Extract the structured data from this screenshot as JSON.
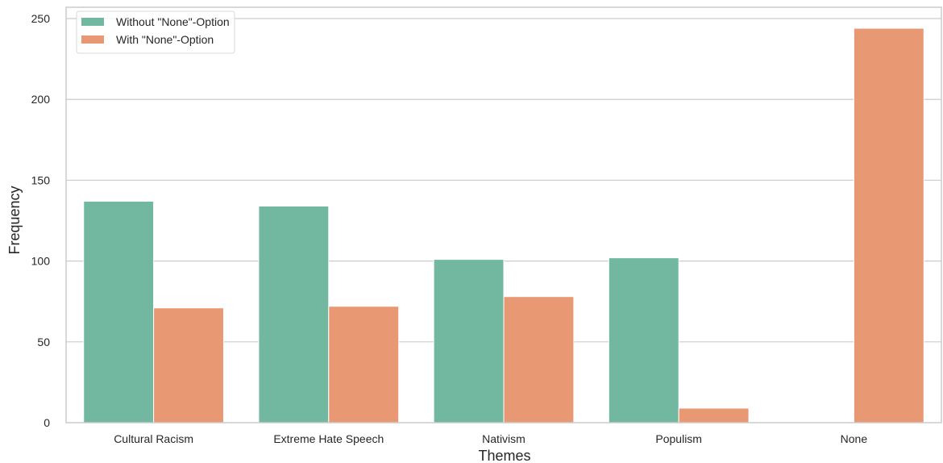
{
  "chart_data": {
    "type": "bar",
    "categories": [
      "Cultural Racism",
      "Extreme Hate Speech",
      "Nativism",
      "Populism",
      "None"
    ],
    "series": [
      {
        "name": "Without \"None\"-Option",
        "values": [
          137,
          134,
          101,
          102,
          0
        ],
        "color": "#72b8a1"
      },
      {
        "name": "With \"None\"-Option",
        "values": [
          71,
          72,
          78,
          9,
          244
        ],
        "color": "#e99874"
      }
    ],
    "title": "",
    "xlabel": "Themes",
    "ylabel": "Frequency",
    "ylim": [
      0,
      257
    ],
    "yticks": [
      0,
      50,
      100,
      150,
      200,
      250
    ],
    "grid": "horizontal",
    "legend_position": "top-left"
  }
}
